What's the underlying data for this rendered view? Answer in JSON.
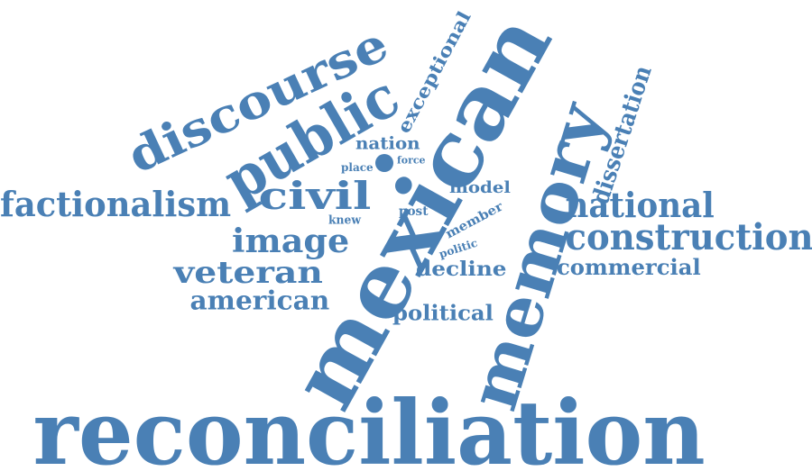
{
  "colors": {
    "word": "#4a80b5",
    "background": "#ffffff"
  },
  "words": [
    {
      "key": "reconciliation",
      "text": "reconciliation"
    },
    {
      "key": "mexican",
      "text": "mexican"
    },
    {
      "key": "memory",
      "text": "memory"
    },
    {
      "key": "discourse",
      "text": "discourse"
    },
    {
      "key": "public",
      "text": "public"
    },
    {
      "key": "civil",
      "text": "civil"
    },
    {
      "key": "factionalism",
      "text": "factionalism"
    },
    {
      "key": "image",
      "text": "image"
    },
    {
      "key": "veteran",
      "text": "veteran"
    },
    {
      "key": "american",
      "text": "american"
    },
    {
      "key": "exceptional",
      "text": "exceptional"
    },
    {
      "key": "nation",
      "text": "nation"
    },
    {
      "key": "place",
      "text": "place"
    },
    {
      "key": "force",
      "text": "force"
    },
    {
      "key": "model",
      "text": "model"
    },
    {
      "key": "knew",
      "text": "knew"
    },
    {
      "key": "post",
      "text": "post"
    },
    {
      "key": "member",
      "text": "member"
    },
    {
      "key": "politic",
      "text": "politic"
    },
    {
      "key": "decline",
      "text": "decline"
    },
    {
      "key": "political",
      "text": "political"
    },
    {
      "key": "dissertation",
      "text": "dissertation"
    },
    {
      "key": "national",
      "text": "national"
    },
    {
      "key": "construction",
      "text": "construction"
    },
    {
      "key": "commercial",
      "text": "commercial"
    }
  ]
}
